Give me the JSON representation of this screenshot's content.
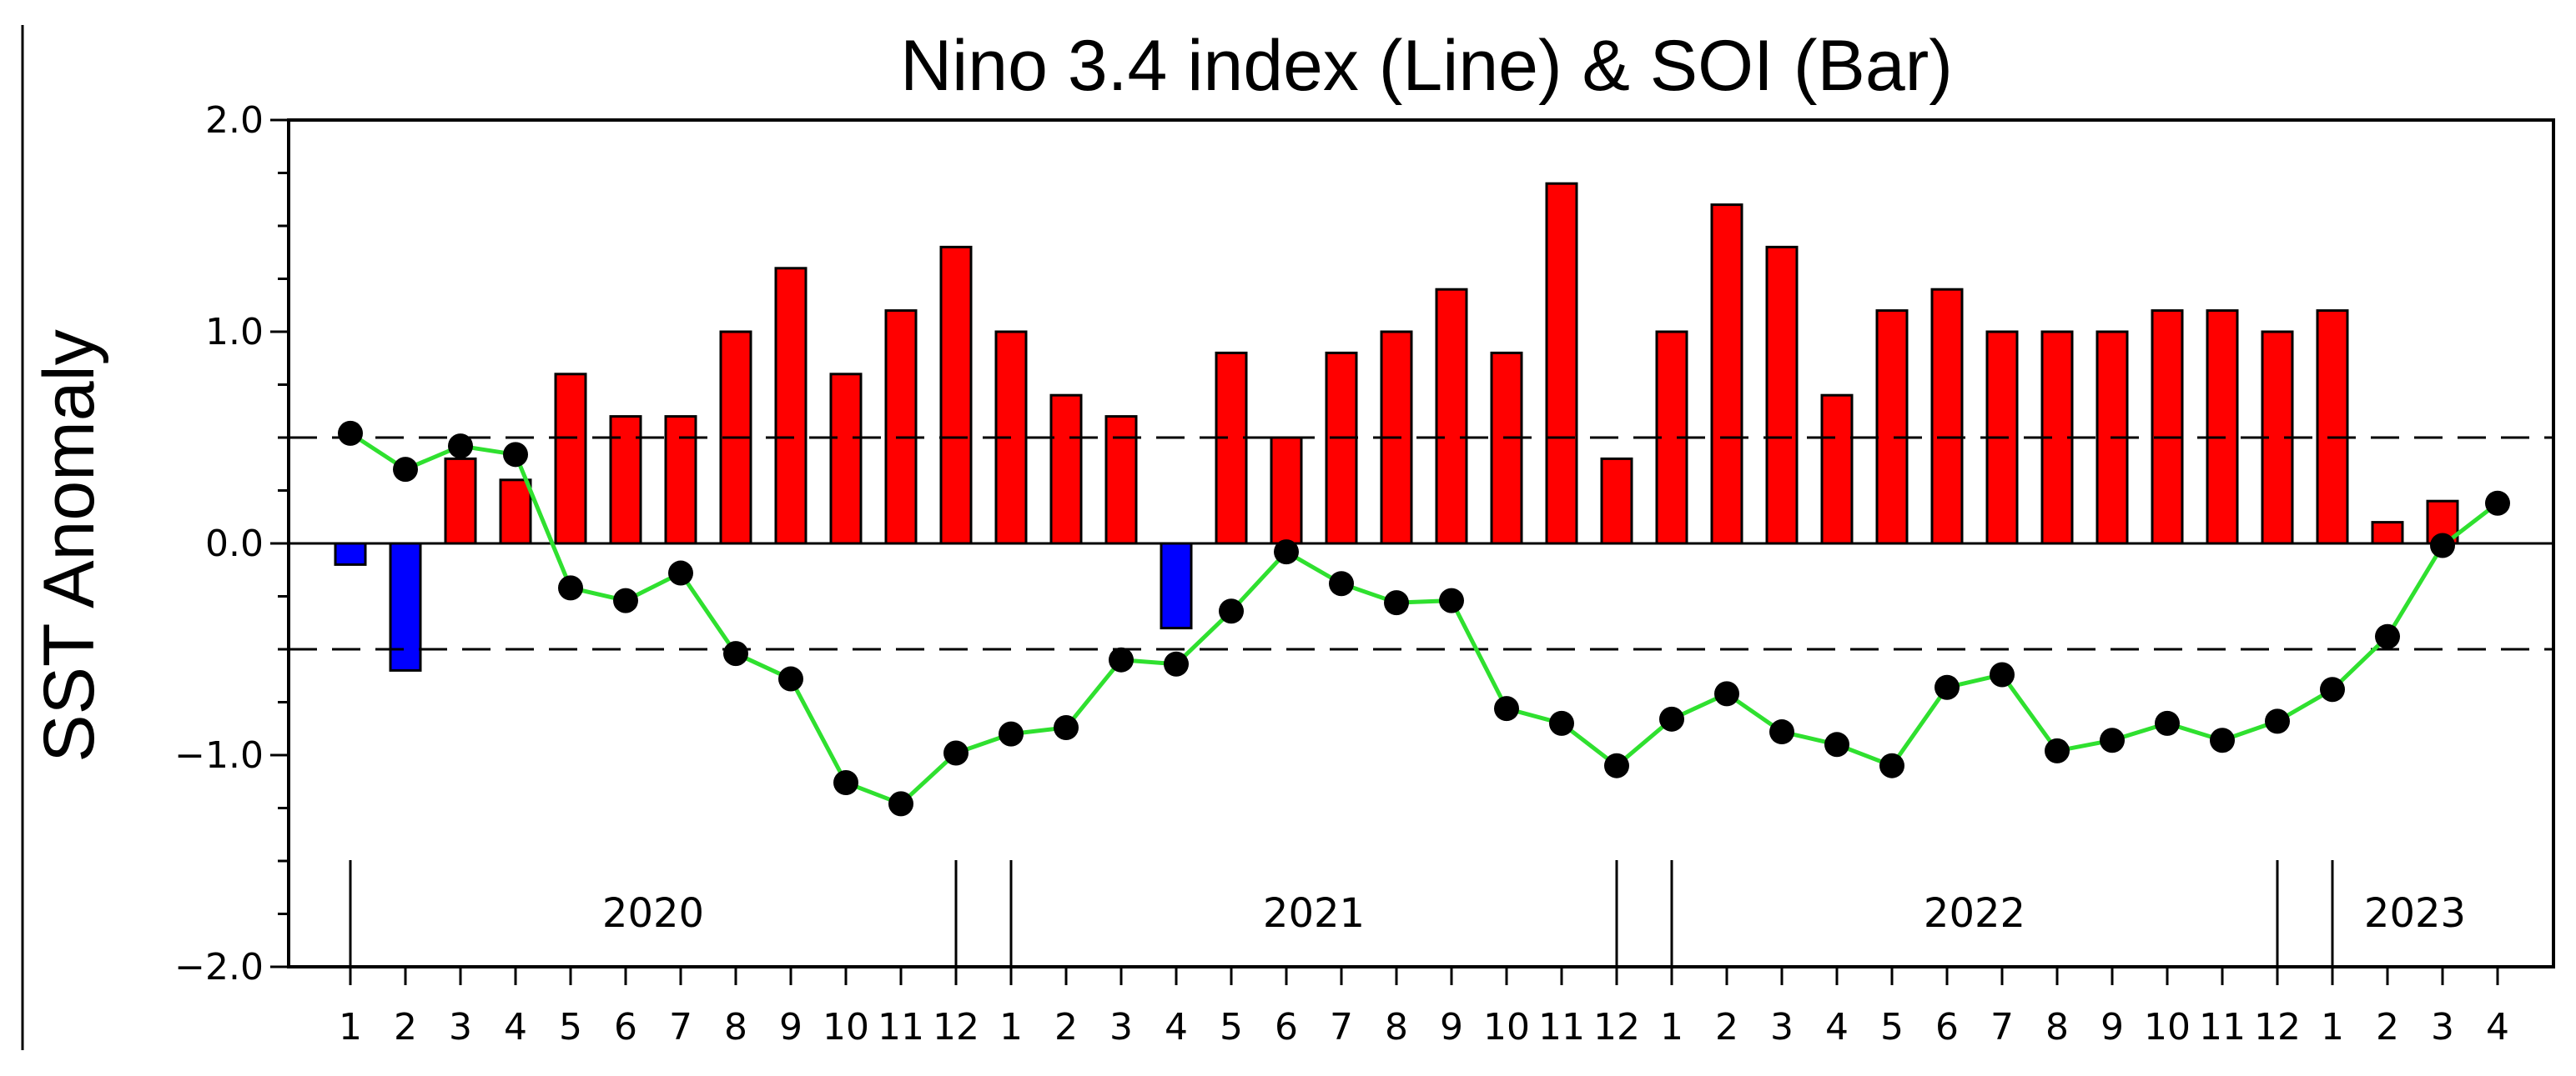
{
  "chart_data": {
    "type": "bar+line",
    "title": "Nino 3.4 index (Line) & SOI (Bar)",
    "ylabel": "SST Anomaly",
    "xlabel": "",
    "ylim": [
      -2.0,
      2.0
    ],
    "yticks": [
      "2.0",
      "1.0",
      "0.0",
      "−1.0",
      "−2.0"
    ],
    "ytick_values": [
      2.0,
      1.0,
      0.0,
      -1.0,
      -2.0
    ],
    "reference_lines": [
      0.5,
      -0.5
    ],
    "months": [
      "1",
      "2",
      "3",
      "4",
      "5",
      "6",
      "7",
      "8",
      "9",
      "10",
      "11",
      "12",
      "1",
      "2",
      "3",
      "4",
      "5",
      "6",
      "7",
      "8",
      "9",
      "10",
      "11",
      "12",
      "1",
      "2",
      "3",
      "4",
      "5",
      "6",
      "7",
      "8",
      "9",
      "10",
      "11",
      "12",
      "1",
      "2",
      "3",
      "4"
    ],
    "years": [
      {
        "label": "2020",
        "start": 0,
        "end": 11
      },
      {
        "label": "2021",
        "start": 12,
        "end": 23
      },
      {
        "label": "2022",
        "start": 24,
        "end": 35
      },
      {
        "label": "2023",
        "start": 36,
        "end": 39
      }
    ],
    "series": [
      {
        "type": "bar",
        "values": [
          -0.1,
          -0.6,
          0.4,
          0.3,
          0.8,
          0.6,
          0.6,
          1.0,
          1.3,
          0.8,
          1.1,
          1.4,
          1.0,
          0.7,
          0.6,
          -0.4,
          0.9,
          0.5,
          0.9,
          1.0,
          1.2,
          0.9,
          1.7,
          0.4,
          1.0,
          1.6,
          1.4,
          0.7,
          1.1,
          1.2,
          1.0,
          1.0,
          1.0,
          1.1,
          1.1,
          1.0,
          1.1,
          0.1,
          0.2,
          0.0
        ],
        "positive_color": "#ff0000",
        "negative_color": "#0000ff"
      },
      {
        "type": "line",
        "values": [
          0.52,
          0.35,
          0.46,
          0.42,
          -0.21,
          -0.27,
          -0.14,
          -0.52,
          -0.64,
          -1.13,
          -1.23,
          -0.99,
          -0.9,
          -0.87,
          -0.55,
          -0.57,
          -0.32,
          -0.04,
          -0.19,
          -0.28,
          -0.27,
          -0.78,
          -0.85,
          -1.05,
          -0.83,
          -0.71,
          -0.89,
          -0.95,
          -1.05,
          -0.68,
          -0.62,
          -0.98,
          -0.93,
          -0.85,
          -0.93,
          -0.84,
          -0.69,
          -0.44,
          -0.01,
          0.19
        ],
        "line_color": "#2fe02f",
        "marker_color": "#000000"
      }
    ]
  }
}
